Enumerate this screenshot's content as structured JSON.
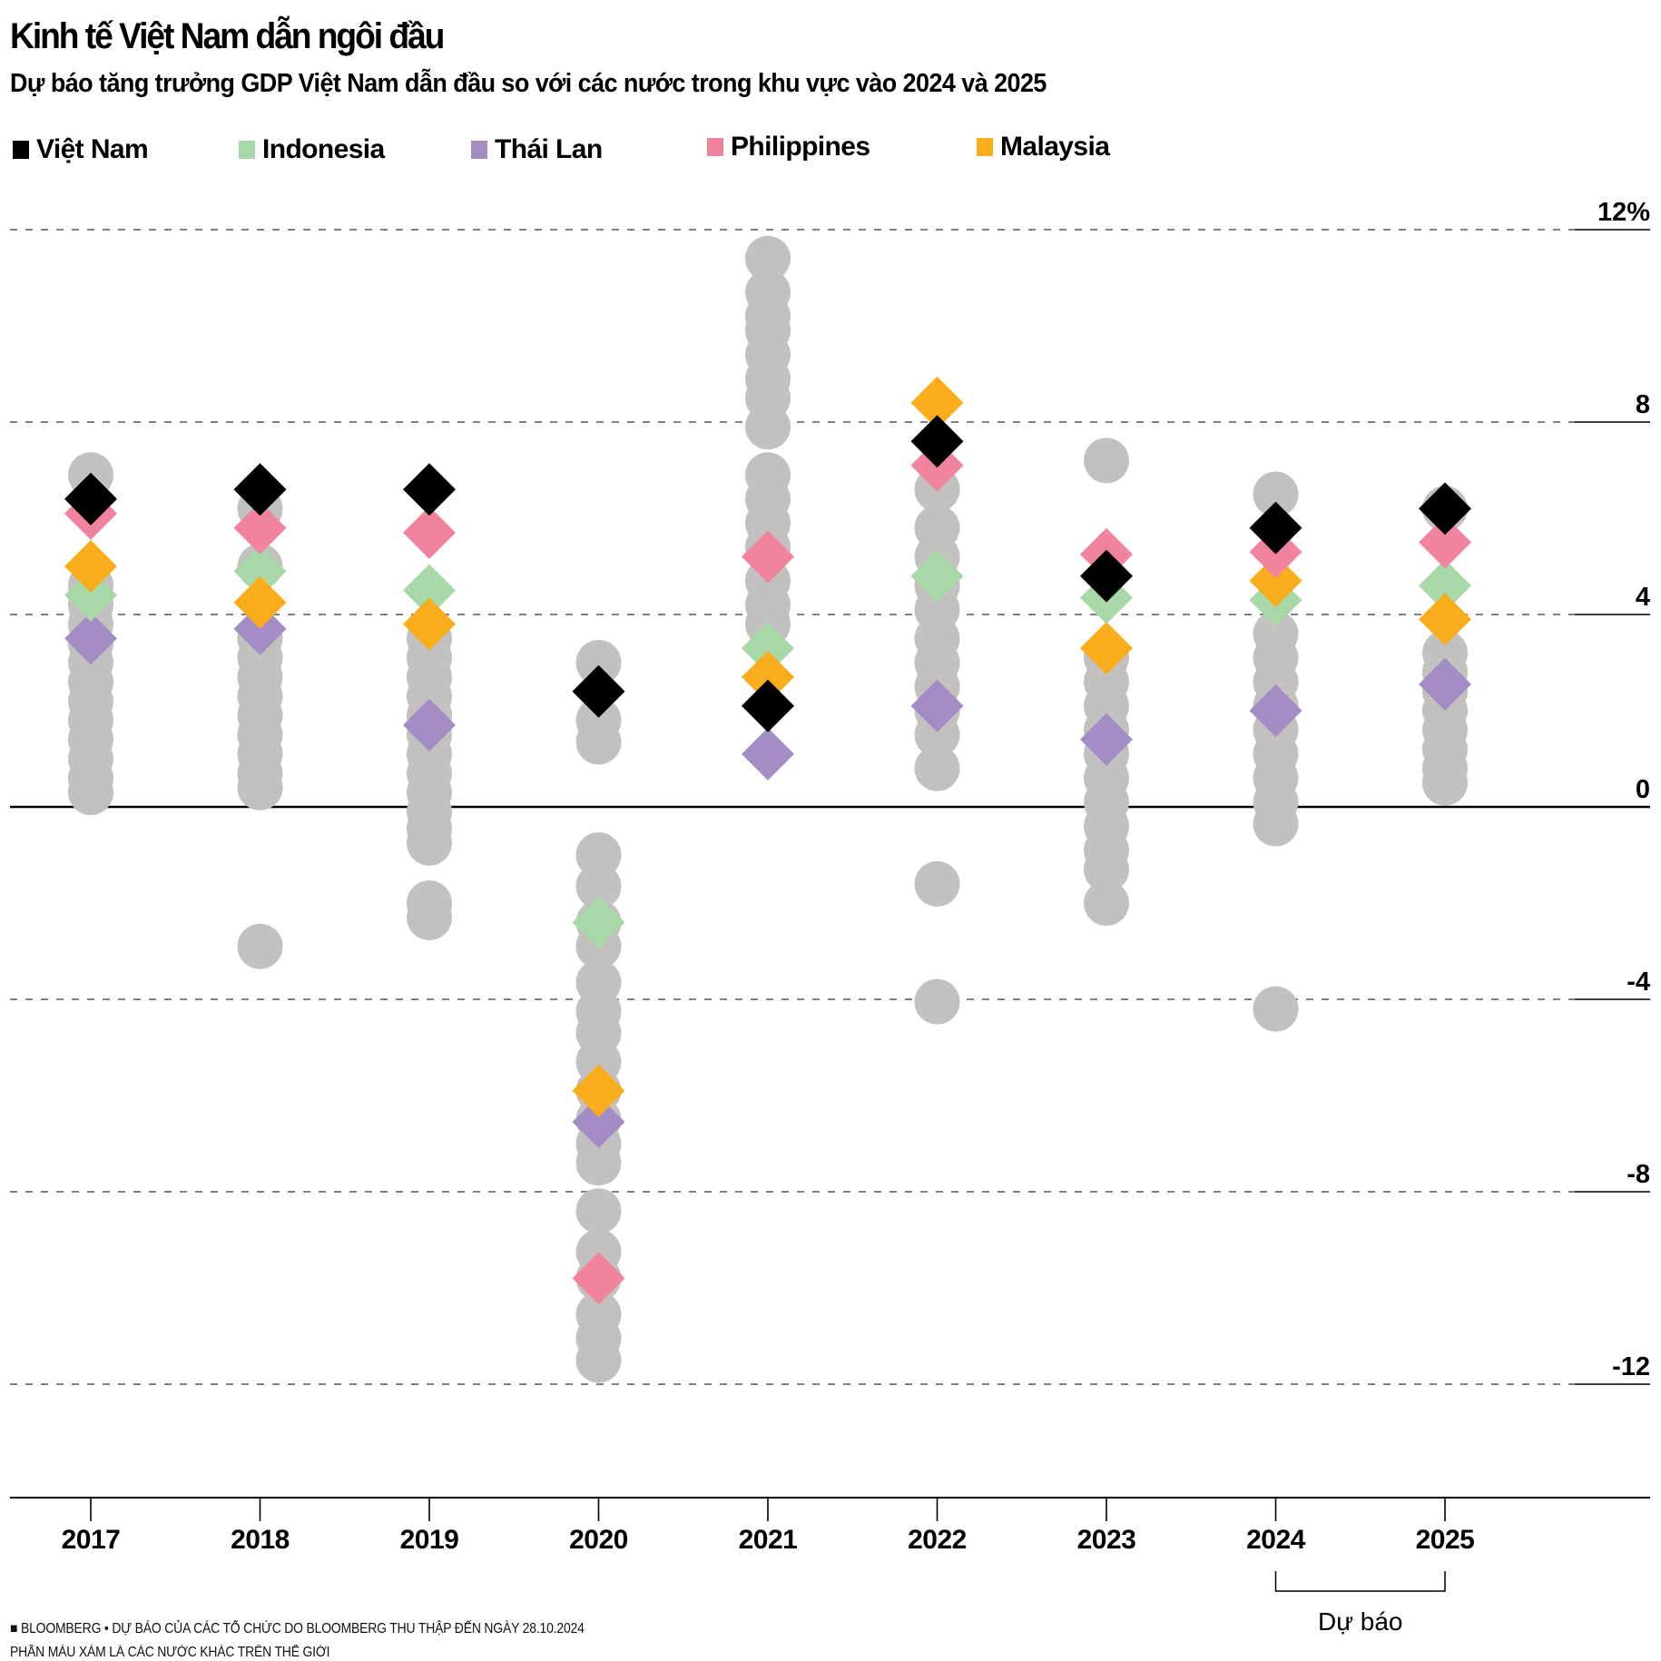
{
  "header": {
    "title": "Kinh tế Việt Nam dẫn ngôi đầu",
    "subtitle": "Dự báo tăng trưởng GDP Việt Nam dẫn đầu so với các nước trong khu vực vào 2024 và 2025"
  },
  "legend": [
    {
      "label": "Việt Nam",
      "color": "#000000"
    },
    {
      "label": "Indonesia",
      "color": "#a8d8a8"
    },
    {
      "label": "Thái Lan",
      "color": "#a48dc4"
    },
    {
      "label": "Philippines",
      "color": "#f0849e"
    },
    {
      "label": "Malaysia",
      "color": "#f9ad1d"
    }
  ],
  "footer": {
    "source": "■ BLOOMBERG • DỰ BÁO CỦA CÁC TỔ CHỨC DO BLOOMBERG THU THẬP ĐẾN NGÀY 28.10.2024",
    "note": "PHẦN MÀU XÁM LÀ CÁC NƯỚC KHÁC TRÊN THẾ GIỚI"
  },
  "chart_data": {
    "type": "scatter",
    "title": "Kinh tế Việt Nam dẫn ngôi đầu",
    "subtitle": "Dự báo tăng trưởng GDP Việt Nam dẫn đầu so với các nước trong khu vực vào 2024 và 2025",
    "xlabel": "",
    "ylabel": "",
    "categories": [
      "2017",
      "2018",
      "2019",
      "2020",
      "2021",
      "2022",
      "2023",
      "2024",
      "2025"
    ],
    "ylim": [
      -14,
      12
    ],
    "yticks": [
      12,
      8,
      4,
      0,
      -4,
      -8,
      -12
    ],
    "ytick_labels": [
      "12%",
      "8",
      "4",
      "0",
      "-4",
      "-8",
      "-12"
    ],
    "grid": "horizontal-dashed",
    "legend_position": "top-left",
    "forecast_annotation": {
      "label": "Dự báo",
      "from": "2024",
      "to": "2025"
    },
    "other_countries_color": "#c2c1c0",
    "series": [
      {
        "name": "Việt Nam",
        "color": "#000000",
        "marker": "diamond",
        "values": [
          6.4,
          6.6,
          6.6,
          2.4,
          2.1,
          7.6,
          4.8,
          5.8,
          6.2
        ]
      },
      {
        "name": "Indonesia",
        "color": "#a8d8a8",
        "marker": "diamond",
        "values": [
          4.4,
          4.9,
          4.5,
          -2.4,
          3.3,
          4.8,
          4.35,
          4.3,
          4.6
        ]
      },
      {
        "name": "Thái Lan",
        "color": "#a48dc4",
        "marker": "diamond",
        "values": [
          3.5,
          3.7,
          1.7,
          -6.55,
          1.1,
          2.1,
          1.4,
          2.0,
          2.55
        ]
      },
      {
        "name": "Philippines",
        "color": "#f0849e",
        "marker": "diamond",
        "values": [
          6.1,
          5.8,
          5.7,
          -9.8,
          5.2,
          7.1,
          5.25,
          5.3,
          5.5
        ]
      },
      {
        "name": "Malaysia",
        "color": "#f9ad1d",
        "marker": "diamond",
        "values": [
          5.0,
          4.25,
          3.8,
          -5.9,
          2.7,
          8.4,
          3.3,
          4.7,
          3.9
        ]
      }
    ],
    "other_countries": [
      {
        "year": "2017",
        "values": [
          6.9,
          4.6,
          4.2,
          3.8,
          3.4,
          3.0,
          2.6,
          2.2,
          1.8,
          1.4,
          1.0,
          0.6,
          0.3
        ]
      },
      {
        "year": "2018",
        "values": [
          6.2,
          5.0,
          3.5,
          3.1,
          2.7,
          2.3,
          1.9,
          1.5,
          1.1,
          0.7,
          0.4,
          -2.9
        ]
      },
      {
        "year": "2019",
        "values": [
          3.5,
          3.1,
          2.7,
          2.3,
          1.9,
          1.5,
          1.1,
          0.7,
          0.3,
          -0.1,
          -0.45,
          -0.75,
          -2.0,
          -2.3
        ]
      },
      {
        "year": "2020",
        "values": [
          3.0,
          1.8,
          1.35,
          -1.0,
          -1.65,
          -2.4,
          -2.9,
          -3.65,
          -4.25,
          -4.7,
          -5.3,
          -5.9,
          -6.5,
          -7.0,
          -7.4,
          -8.4,
          -9.25,
          -9.8,
          -10.55,
          -11.05,
          -11.5
        ]
      },
      {
        "year": "2021",
        "values": [
          11.4,
          10.7,
          10.2,
          9.9,
          9.4,
          8.9,
          8.5,
          7.9,
          6.9,
          6.4,
          5.9,
          5.4,
          4.7,
          4.2,
          3.8
        ]
      },
      {
        "year": "2022",
        "values": [
          6.6,
          5.8,
          5.2,
          4.6,
          4.1,
          3.5,
          3.0,
          2.5,
          2.0,
          1.5,
          0.8,
          -1.6,
          -4.05
        ]
      },
      {
        "year": "2023",
        "values": [
          7.2,
          3.1,
          2.6,
          2.1,
          1.6,
          1.1,
          0.6,
          0.1,
          -0.4,
          -0.9,
          -1.3,
          -2.0
        ]
      },
      {
        "year": "2024",
        "values": [
          6.5,
          3.6,
          3.1,
          2.6,
          2.1,
          1.6,
          1.1,
          0.6,
          0.1,
          -0.35,
          -4.2
        ]
      },
      {
        "year": "2025",
        "values": [
          6.2,
          3.2,
          2.8,
          2.4,
          2.0,
          1.6,
          1.2,
          0.8,
          0.5
        ]
      }
    ]
  }
}
